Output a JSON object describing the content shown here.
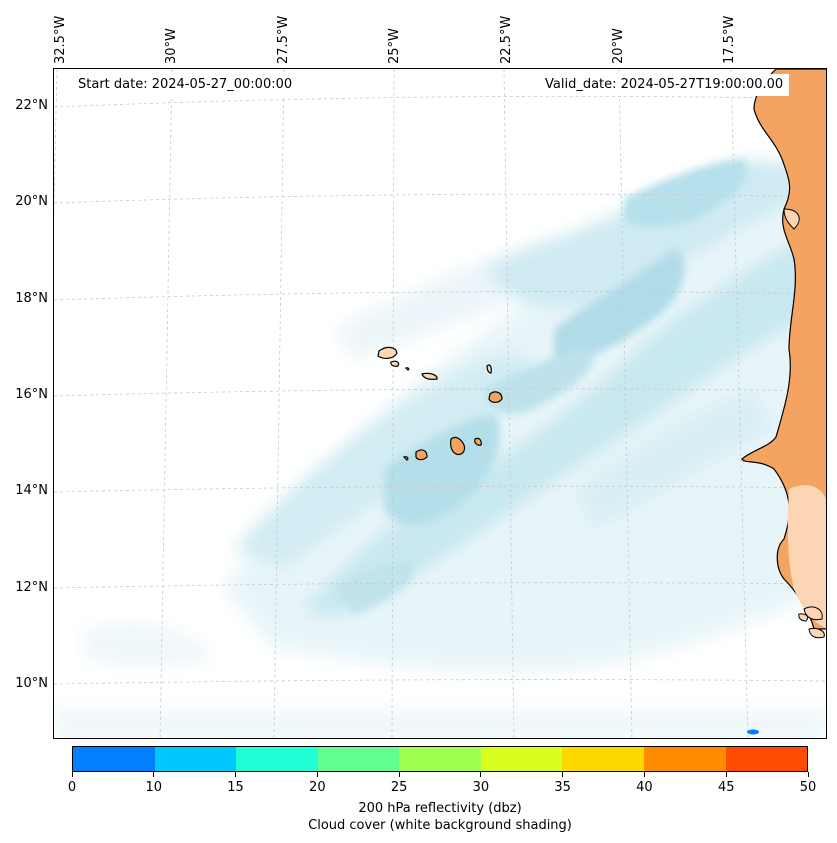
{
  "info": {
    "start": "Start date: 2024-05-27_00:00:00",
    "valid": "Valid_date: 2024-05-27T19:00:00.00"
  },
  "lat_labels": [
    "22°N",
    "20°N",
    "18°N",
    "16°N",
    "14°N",
    "12°N",
    "10°N"
  ],
  "lon_labels": [
    "32.5°W",
    "30°W",
    "27.5°W",
    "25°W",
    "22.5°W",
    "20°W",
    "17.5°W"
  ],
  "colorbar": {
    "ticks": [
      "0",
      "10",
      "15",
      "20",
      "25",
      "30",
      "35",
      "40",
      "45",
      "50"
    ],
    "colors": [
      "#0080ff",
      "#00c8ff",
      "#20ffd8",
      "#60ff90",
      "#a0ff50",
      "#d8ff20",
      "#ffd800",
      "#ff8c00",
      "#ff4c00"
    ],
    "label1": "200 hPa reflectivity (dbz)",
    "label2": "Cloud cover (white background shading)"
  },
  "map_colors": {
    "cloud_light": "#e6f4f8",
    "cloud_mid": "#c4e6ef",
    "cloud_dark": "#acdbe8",
    "land_orange": "#f4a460",
    "land_pale": "#fcd6b4"
  }
}
